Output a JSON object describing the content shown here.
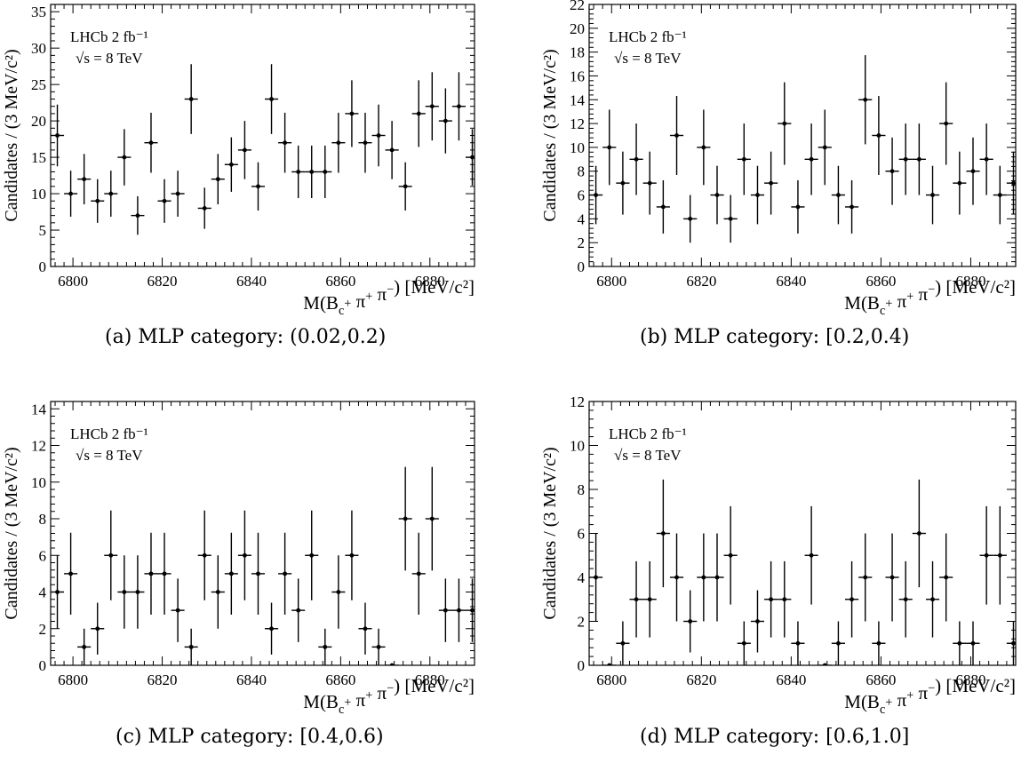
{
  "figure": {
    "captions": [
      "(a) MLP category: (0.02,0.2)",
      "(b) MLP category: [0.2,0.4)",
      "(c) MLP category: [0.4,0.6)",
      "(d) MLP category: [0.6,1.0]"
    ]
  },
  "chart_data": [
    {
      "type": "scatter",
      "panel": "a",
      "title": "",
      "experiment_label": "LHCb  2 fb⁻¹",
      "energy_label": "√s = 8 TeV",
      "xlabel": "M(B_c^+ π^+ π^−) [MeV/c²]",
      "ylabel": "Candidates / (3 MeV/c²)",
      "xlim": [
        6795,
        6890
      ],
      "ylim": [
        0,
        36
      ],
      "xticks": [
        6800,
        6820,
        6840,
        6860,
        6880
      ],
      "yticks": [
        0,
        5,
        10,
        15,
        20,
        25,
        30,
        35
      ],
      "bin_width": 3,
      "x": [
        6796.5,
        6799.5,
        6802.5,
        6805.5,
        6808.5,
        6811.5,
        6814.5,
        6817.5,
        6820.5,
        6823.5,
        6826.5,
        6829.5,
        6832.5,
        6835.5,
        6838.5,
        6841.5,
        6844.5,
        6847.5,
        6850.5,
        6853.5,
        6856.5,
        6859.5,
        6862.5,
        6865.5,
        6868.5,
        6871.5,
        6874.5,
        6877.5,
        6880.5,
        6883.5,
        6886.5,
        6889.5
      ],
      "y": [
        18,
        10,
        12,
        9,
        10,
        15,
        7,
        17,
        9,
        10,
        23,
        8,
        12,
        14,
        16,
        11,
        23,
        17,
        13,
        13,
        13,
        17,
        21,
        17,
        18,
        16,
        11,
        21,
        22,
        20,
        22,
        15
      ]
    },
    {
      "type": "scatter",
      "panel": "b",
      "title": "",
      "experiment_label": "LHCb  2 fb⁻¹",
      "energy_label": "√s = 8 TeV",
      "xlabel": "M(B_c^+ π^+ π^−) [MeV/c²]",
      "ylabel": "Candidates / (3 MeV/c²)",
      "xlim": [
        6795,
        6890
      ],
      "ylim": [
        0,
        22
      ],
      "xticks": [
        6800,
        6820,
        6840,
        6860,
        6880
      ],
      "yticks": [
        0,
        2,
        4,
        6,
        8,
        10,
        12,
        14,
        16,
        18,
        20,
        22
      ],
      "bin_width": 3,
      "x": [
        6796.5,
        6799.5,
        6802.5,
        6805.5,
        6808.5,
        6811.5,
        6814.5,
        6817.5,
        6820.5,
        6823.5,
        6826.5,
        6829.5,
        6832.5,
        6835.5,
        6838.5,
        6841.5,
        6844.5,
        6847.5,
        6850.5,
        6853.5,
        6856.5,
        6859.5,
        6862.5,
        6865.5,
        6868.5,
        6871.5,
        6874.5,
        6877.5,
        6880.5,
        6883.5,
        6886.5,
        6889.5
      ],
      "y": [
        6,
        10,
        7,
        9,
        7,
        5,
        11,
        4,
        10,
        6,
        4,
        9,
        6,
        7,
        12,
        5,
        9,
        10,
        6,
        5,
        14,
        11,
        8,
        9,
        9,
        6,
        12,
        7,
        8,
        9,
        6,
        7
      ]
    },
    {
      "type": "scatter",
      "panel": "c",
      "title": "",
      "experiment_label": "LHCb  2 fb⁻¹",
      "energy_label": "√s = 8 TeV",
      "xlabel": "M(B_c^+ π^+ π^−) [MeV/c²]",
      "ylabel": "Candidates / (3 MeV/c²)",
      "xlim": [
        6795,
        6890
      ],
      "ylim": [
        0,
        14.4
      ],
      "xticks": [
        6800,
        6820,
        6840,
        6860,
        6880
      ],
      "yticks": [
        0,
        2,
        4,
        6,
        8,
        10,
        12,
        14
      ],
      "bin_width": 3,
      "x": [
        6796.5,
        6799.5,
        6802.5,
        6805.5,
        6808.5,
        6811.5,
        6814.5,
        6817.5,
        6820.5,
        6823.5,
        6826.5,
        6829.5,
        6832.5,
        6835.5,
        6838.5,
        6841.5,
        6844.5,
        6847.5,
        6850.5,
        6853.5,
        6856.5,
        6859.5,
        6862.5,
        6865.5,
        6868.5,
        6871.5,
        6874.5,
        6877.5,
        6880.5,
        6883.5,
        6886.5,
        6889.5
      ],
      "y": [
        4,
        5,
        1,
        2,
        6,
        4,
        4,
        5,
        5,
        3,
        1,
        6,
        4,
        5,
        6,
        5,
        2,
        5,
        3,
        6,
        1,
        4,
        6,
        2,
        1,
        0,
        8,
        5,
        8,
        3,
        3,
        3
      ]
    },
    {
      "type": "scatter",
      "panel": "d",
      "title": "",
      "experiment_label": "LHCb  2 fb⁻¹",
      "energy_label": "√s = 8 TeV",
      "xlabel": "M(B_c^+ π^+ π^−) [MeV/c²]",
      "ylabel": "Candidates / (3 MeV/c²)",
      "xlim": [
        6795,
        6890
      ],
      "ylim": [
        0,
        12
      ],
      "xticks": [
        6800,
        6820,
        6840,
        6860,
        6880
      ],
      "yticks": [
        0,
        2,
        4,
        6,
        8,
        10,
        12
      ],
      "bin_width": 3,
      "x": [
        6796.5,
        6799.5,
        6802.5,
        6805.5,
        6808.5,
        6811.5,
        6814.5,
        6817.5,
        6820.5,
        6823.5,
        6826.5,
        6829.5,
        6832.5,
        6835.5,
        6838.5,
        6841.5,
        6844.5,
        6847.5,
        6850.5,
        6853.5,
        6856.5,
        6859.5,
        6862.5,
        6865.5,
        6868.5,
        6871.5,
        6874.5,
        6877.5,
        6880.5,
        6883.5,
        6886.5,
        6889.5
      ],
      "y": [
        4,
        0,
        1,
        3,
        3,
        6,
        4,
        2,
        4,
        4,
        5,
        1,
        2,
        3,
        3,
        1,
        5,
        0,
        1,
        3,
        4,
        1,
        4,
        3,
        6,
        3,
        4,
        1,
        1,
        5,
        5,
        1
      ]
    }
  ]
}
